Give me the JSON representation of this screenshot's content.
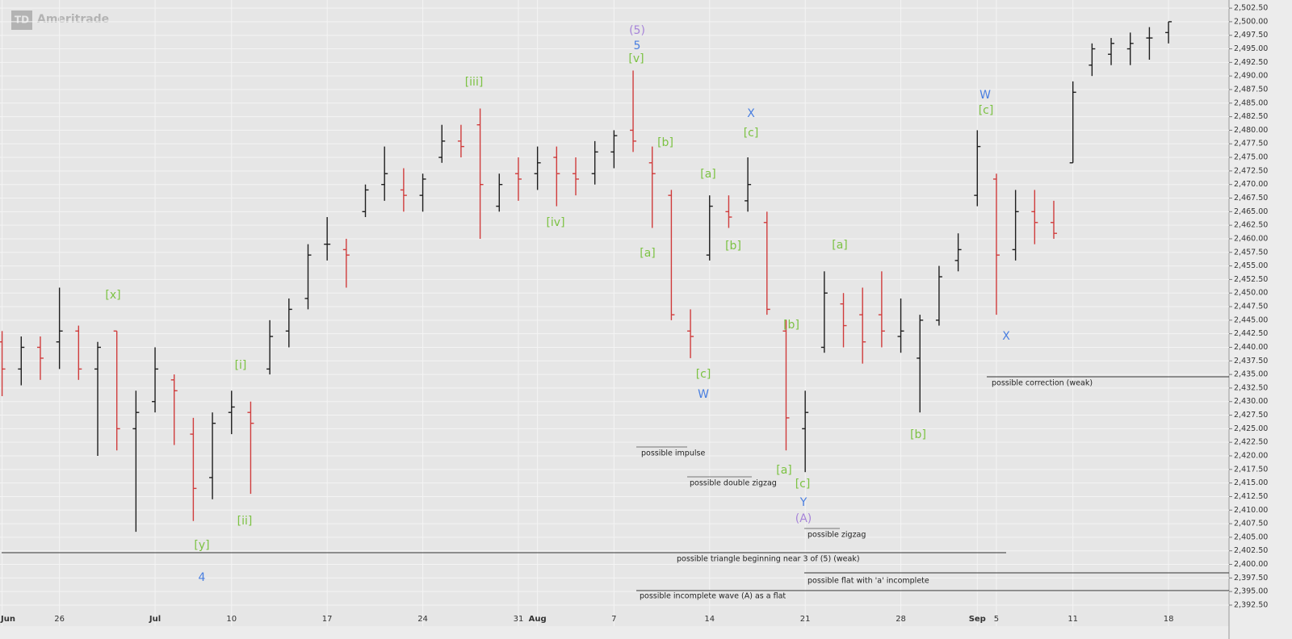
{
  "chart_data": {
    "type": "ohlc",
    "watermark": "Ameritrade",
    "logo": "TD",
    "up_color": "#1e1e1e",
    "down_color": "#d03c3c",
    "categories": [
      "Jun",
      null,
      null,
      "26",
      null,
      null,
      null,
      null,
      "Jul",
      null,
      null,
      null,
      "10",
      null,
      null,
      null,
      null,
      "17",
      null,
      null,
      null,
      null,
      "24",
      null,
      null,
      null,
      null,
      "31",
      "Aug",
      null,
      null,
      null,
      "7",
      null,
      null,
      null,
      null,
      "14",
      null,
      null,
      null,
      null,
      "21",
      null,
      null,
      null,
      null,
      "28",
      null,
      null,
      null,
      "Sep",
      "5",
      null,
      null,
      null,
      "11",
      null,
      null,
      null,
      null,
      "18"
    ],
    "open": [
      2441,
      2436,
      2440,
      2441,
      2443,
      2436,
      2443,
      2425,
      2430,
      2434,
      2424,
      2416,
      2428,
      2428,
      2436,
      2443,
      2449,
      2459,
      2458,
      2465,
      2470,
      2469,
      2468,
      2475,
      2478,
      2481,
      2466,
      2472,
      2472,
      2475,
      2472,
      2472,
      2476,
      2480,
      2474,
      2468,
      2443,
      2457,
      2465,
      2467,
      2463,
      2443,
      2425,
      2440,
      2448,
      2446,
      2446,
      2442,
      2438,
      2445,
      2456,
      2468,
      2471,
      2458,
      2465,
      2463,
      2474,
      2492,
      2494,
      2495,
      2497,
      2498
    ],
    "high": [
      2443,
      2442,
      2442,
      2451,
      2444,
      2441,
      2443,
      2432,
      2440,
      2435,
      2427,
      2428,
      2432,
      2430,
      2445,
      2449,
      2459,
      2464,
      2460,
      2470,
      2477,
      2473,
      2472,
      2481,
      2481,
      2484,
      2472,
      2475,
      2477,
      2477,
      2475,
      2478,
      2480,
      2491,
      2477,
      2469,
      2447,
      2468,
      2468,
      2475,
      2465,
      2445,
      2432,
      2454,
      2450,
      2451,
      2454,
      2449,
      2446,
      2455,
      2461,
      2480,
      2472,
      2469,
      2469,
      2467,
      2489,
      2496,
      2497,
      2498,
      2499,
      2500
    ],
    "low": [
      2431,
      2433,
      2434,
      2436,
      2434,
      2420,
      2421,
      2406,
      2428,
      2422,
      2408,
      2412,
      2424,
      2413,
      2435,
      2440,
      2447,
      2456,
      2451,
      2464,
      2467,
      2465,
      2465,
      2474,
      2475,
      2460,
      2465,
      2467,
      2469,
      2466,
      2468,
      2470,
      2473,
      2476,
      2462,
      2445,
      2438,
      2456,
      2462,
      2465,
      2446,
      2421,
      2417,
      2439,
      2440,
      2437,
      2440,
      2439,
      2428,
      2444,
      2454,
      2466,
      2446,
      2456,
      2459,
      2460,
      2474,
      2490,
      2492,
      2492,
      2493,
      2496
    ],
    "close": [
      2436,
      2440,
      2438,
      2443,
      2436,
      2440,
      2425,
      2428,
      2436,
      2432,
      2414,
      2426,
      2429,
      2426,
      2442,
      2447,
      2457,
      2459,
      2457,
      2469,
      2472,
      2468,
      2471,
      2478,
      2477,
      2470,
      2470,
      2471,
      2474,
      2472,
      2471,
      2476,
      2479,
      2478,
      2472,
      2446,
      2442,
      2466,
      2464,
      2470,
      2447,
      2427,
      2428,
      2450,
      2444,
      2441,
      2443,
      2443,
      2445,
      2453,
      2458,
      2477,
      2457,
      2465,
      2463,
      2461,
      2487,
      2495,
      2496,
      2496,
      2497,
      2500
    ],
    "ylim": [
      2388.63,
      2504.0
    ],
    "yticks": [
      {
        "value": 2392.5,
        "label": "2,392.50"
      },
      {
        "value": 2395,
        "label": "2,395.00"
      },
      {
        "value": 2397.5,
        "label": "2,397.50"
      },
      {
        "value": 2400,
        "label": "2,400.00"
      },
      {
        "value": 2402.5,
        "label": "2,402.50"
      },
      {
        "value": 2405,
        "label": "2,405.00"
      },
      {
        "value": 2407.5,
        "label": "2,407.50"
      },
      {
        "value": 2410,
        "label": "2,410.00"
      },
      {
        "value": 2412.5,
        "label": "2,412.50"
      },
      {
        "value": 2415,
        "label": "2,415.00"
      },
      {
        "value": 2417.5,
        "label": "2,417.50"
      },
      {
        "value": 2420,
        "label": "2,420.00"
      },
      {
        "value": 2422.5,
        "label": "2,422.50"
      },
      {
        "value": 2425,
        "label": "2,425.00"
      },
      {
        "value": 2427.5,
        "label": "2,427.50"
      },
      {
        "value": 2430,
        "label": "2,430.00"
      },
      {
        "value": 2432.5,
        "label": "2,432.50"
      },
      {
        "value": 2435,
        "label": "2,435.00"
      },
      {
        "value": 2437.5,
        "label": "2,437.50"
      },
      {
        "value": 2440,
        "label": "2,440.00"
      },
      {
        "value": 2442.5,
        "label": "2,442.50"
      },
      {
        "value": 2445,
        "label": "2,445.00"
      },
      {
        "value": 2447.5,
        "label": "2,447.50"
      },
      {
        "value": 2450,
        "label": "2,450.00"
      },
      {
        "value": 2452.5,
        "label": "2,452.50"
      },
      {
        "value": 2455,
        "label": "2,455.00"
      },
      {
        "value": 2457.5,
        "label": "2,457.50"
      },
      {
        "value": 2460,
        "label": "2,460.00"
      },
      {
        "value": 2462.5,
        "label": "2,462.50"
      },
      {
        "value": 2465,
        "label": "2,465.00"
      },
      {
        "value": 2467.5,
        "label": "2,467.50"
      },
      {
        "value": 2470,
        "label": "2,470.00"
      },
      {
        "value": 2472.5,
        "label": "2,472.50"
      },
      {
        "value": 2475,
        "label": "2,475.00"
      },
      {
        "value": 2477.5,
        "label": "2,477.50"
      },
      {
        "value": 2480,
        "label": "2,480.00"
      },
      {
        "value": 2482.5,
        "label": "2,482.50"
      },
      {
        "value": 2485,
        "label": "2,485.00"
      },
      {
        "value": 2487.5,
        "label": "2,487.50"
      },
      {
        "value": 2490,
        "label": "2,490.00"
      },
      {
        "value": 2492.5,
        "label": "2,492.50"
      },
      {
        "value": 2495,
        "label": "2,495.00"
      },
      {
        "value": 2497.5,
        "label": "2,497.50"
      },
      {
        "value": 2500,
        "label": "2,500.00"
      },
      {
        "value": 2502.5,
        "label": "2,502.50"
      }
    ],
    "grid": true,
    "annotations": [
      {
        "text": "[x]",
        "color": "#7cc243"
      },
      {
        "text": "[i]",
        "color": "#7cc243"
      },
      {
        "text": "[ii]",
        "color": "#7cc243"
      },
      {
        "text": "[y]",
        "color": "#7cc243"
      },
      {
        "text": "4",
        "color": "#4a7fe0"
      },
      {
        "text": "[iii]",
        "color": "#7cc243"
      },
      {
        "text": "[iv]",
        "color": "#7cc243"
      },
      {
        "text": "(5)",
        "color": "#a784d9"
      },
      {
        "text": "5",
        "color": "#4a7fe0"
      },
      {
        "text": "[v]",
        "color": "#7cc243"
      },
      {
        "text": "[b]",
        "color": "#7cc243"
      },
      {
        "text": "[a]",
        "color": "#7cc243"
      },
      {
        "text": "[c]",
        "color": "#7cc243"
      },
      {
        "text": "W",
        "color": "#4a7fe0"
      },
      {
        "text": "[a]",
        "color": "#7cc243"
      },
      {
        "text": "[b]",
        "color": "#7cc243"
      },
      {
        "text": "X",
        "color": "#4a7fe0"
      },
      {
        "text": "[c]",
        "color": "#7cc243"
      },
      {
        "text": "[b]",
        "color": "#7cc243"
      },
      {
        "text": "[a]",
        "color": "#7cc243"
      },
      {
        "text": "[c]",
        "color": "#7cc243"
      },
      {
        "text": "Y",
        "color": "#4a7fe0"
      },
      {
        "text": "(A)",
        "color": "#a784d9"
      },
      {
        "text": "[a]",
        "color": "#7cc243"
      },
      {
        "text": "[b]",
        "color": "#7cc243"
      },
      {
        "text": "W",
        "color": "#4a7fe0"
      },
      {
        "text": "[c]",
        "color": "#7cc243"
      },
      {
        "text": "X",
        "color": "#4a7fe0"
      }
    ],
    "notes": [
      "possible impulse",
      "possible double zigzag",
      "possible zigzag",
      "possible triangle beginning near 3 of (5) (weak)",
      "possible flat with 'a' incomplete",
      "possible incomplete wave (A) as a flat",
      "possible correction (weak)"
    ]
  }
}
